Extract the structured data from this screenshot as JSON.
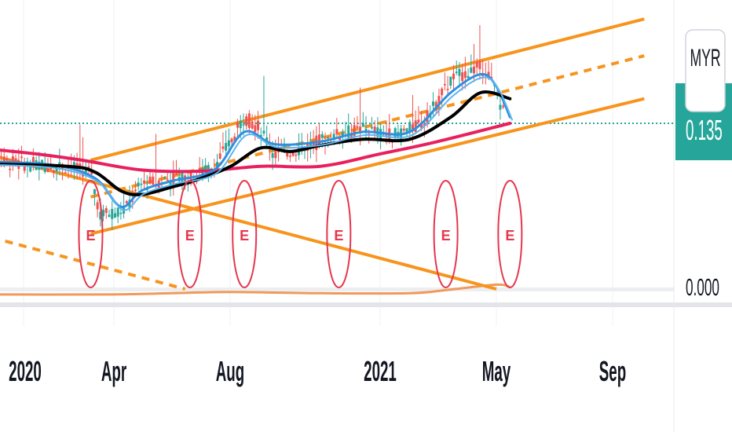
{
  "chart_data": {
    "type": "candlestick",
    "x_ticks": [
      "2020",
      "Apr",
      "Aug",
      "2021",
      "May",
      "Sep"
    ],
    "price_scale": {
      "currency": "MYR",
      "last_price": "0.135",
      "zero_label": "0.000"
    },
    "earnings_markers": [
      {
        "date": "2020-03-10",
        "label": "E"
      },
      {
        "date": "2020-06-20",
        "label": "E"
      },
      {
        "date": "2020-08-15",
        "label": "E"
      },
      {
        "date": "2020-11-20",
        "label": "E"
      },
      {
        "date": "2021-03-10",
        "label": "E"
      },
      {
        "date": "2021-05-15",
        "label": "E"
      }
    ],
    "series": [
      {
        "role": "price_close",
        "points": [
          [
            "2019-11-15",
            0.105
          ],
          [
            "2020-01-01",
            0.102
          ],
          [
            "2020-02-15",
            0.1
          ],
          [
            "2020-03-10",
            0.095
          ],
          [
            "2020-03-20",
            0.06
          ],
          [
            "2020-04-15",
            0.065
          ],
          [
            "2020-05-01",
            0.085
          ],
          [
            "2020-06-01",
            0.09
          ],
          [
            "2020-06-20",
            0.09
          ],
          [
            "2020-07-15",
            0.1
          ],
          [
            "2020-08-01",
            0.12
          ],
          [
            "2020-08-15",
            0.14
          ],
          [
            "2020-09-01",
            0.13
          ],
          [
            "2020-09-15",
            0.11
          ],
          [
            "2020-10-15",
            0.115
          ],
          [
            "2020-11-15",
            0.125
          ],
          [
            "2020-12-15",
            0.13
          ],
          [
            "2021-01-15",
            0.125
          ],
          [
            "2021-02-15",
            0.135
          ],
          [
            "2021-03-15",
            0.17
          ],
          [
            "2021-04-10",
            0.18
          ],
          [
            "2021-04-20",
            0.18
          ],
          [
            "2021-05-01",
            0.16
          ],
          [
            "2021-05-10",
            0.14
          ]
        ]
      },
      {
        "role": "moving_average_short",
        "color": "#2f8fe0",
        "points": [
          [
            "2019-11-15",
            0.104
          ],
          [
            "2020-02-01",
            0.101
          ],
          [
            "2020-03-15",
            0.09
          ],
          [
            "2020-04-10",
            0.067
          ],
          [
            "2020-05-01",
            0.08
          ],
          [
            "2020-06-01",
            0.088
          ],
          [
            "2020-07-15",
            0.097
          ],
          [
            "2020-08-15",
            0.128
          ],
          [
            "2020-09-15",
            0.118
          ],
          [
            "2020-11-01",
            0.12
          ],
          [
            "2020-12-15",
            0.128
          ],
          [
            "2021-02-01",
            0.128
          ],
          [
            "2021-03-15",
            0.16
          ],
          [
            "2021-04-15",
            0.175
          ],
          [
            "2021-05-01",
            0.165
          ],
          [
            "2021-05-15",
            0.14
          ]
        ]
      },
      {
        "role": "moving_average_mid",
        "color": "#000000",
        "points": [
          [
            "2019-11-15",
            0.102
          ],
          [
            "2020-02-15",
            0.1
          ],
          [
            "2020-03-15",
            0.095
          ],
          [
            "2020-04-10",
            0.08
          ],
          [
            "2020-05-01",
            0.077
          ],
          [
            "2020-06-01",
            0.083
          ],
          [
            "2020-07-01",
            0.09
          ],
          [
            "2020-08-01",
            0.1
          ],
          [
            "2020-09-01",
            0.115
          ],
          [
            "2020-10-01",
            0.112
          ],
          [
            "2020-11-01",
            0.117
          ],
          [
            "2020-12-15",
            0.122
          ],
          [
            "2021-02-01",
            0.122
          ],
          [
            "2021-03-15",
            0.14
          ],
          [
            "2021-04-15",
            0.16
          ],
          [
            "2021-05-15",
            0.155
          ]
        ]
      },
      {
        "role": "moving_average_long",
        "color": "#e8205e",
        "points": [
          [
            "2019-11-15",
            0.115
          ],
          [
            "2020-01-15",
            0.11
          ],
          [
            "2020-03-01",
            0.105
          ],
          [
            "2020-05-01",
            0.097
          ],
          [
            "2020-07-01",
            0.096
          ],
          [
            "2020-09-01",
            0.1
          ],
          [
            "2020-11-01",
            0.1
          ],
          [
            "2021-01-01",
            0.11
          ],
          [
            "2021-03-01",
            0.12
          ],
          [
            "2021-05-15",
            0.135
          ]
        ]
      },
      {
        "role": "volume_line",
        "color": "#ef9a5a",
        "points": [
          [
            "2019-11-15",
            0.002
          ],
          [
            "2020-04-01",
            0.002
          ],
          [
            "2020-06-01",
            0.003
          ],
          [
            "2020-08-01",
            0.004
          ],
          [
            "2020-11-01",
            0.003
          ],
          [
            "2021-02-01",
            0.003
          ],
          [
            "2021-03-15",
            0.006
          ],
          [
            "2021-05-01",
            0.01
          ],
          [
            "2021-05-15",
            0.008
          ]
        ]
      }
    ],
    "trendlines": [
      {
        "style": "solid",
        "color": "#f7941d",
        "from": [
          "2020-03-10",
          0.105
        ],
        "to": [
          "2021-09-30",
          0.22
        ]
      },
      {
        "style": "solid",
        "color": "#f7941d",
        "from": [
          "2020-03-10",
          0.045
        ],
        "to": [
          "2021-09-30",
          0.155
        ]
      },
      {
        "style": "dashed",
        "color": "#f7941d",
        "from": [
          "2020-03-10",
          0.075
        ],
        "to": [
          "2021-09-30",
          0.19
        ]
      },
      {
        "style": "solid",
        "color": "#f7941d",
        "from": [
          "2019-11-15",
          0.112
        ],
        "to": [
          "2021-05-01",
          0.0
        ]
      },
      {
        "style": "dashed",
        "color": "#f7941d",
        "from": [
          "2019-11-15",
          0.045
        ],
        "to": [
          "2020-06-15",
          0.0
        ]
      }
    ]
  }
}
